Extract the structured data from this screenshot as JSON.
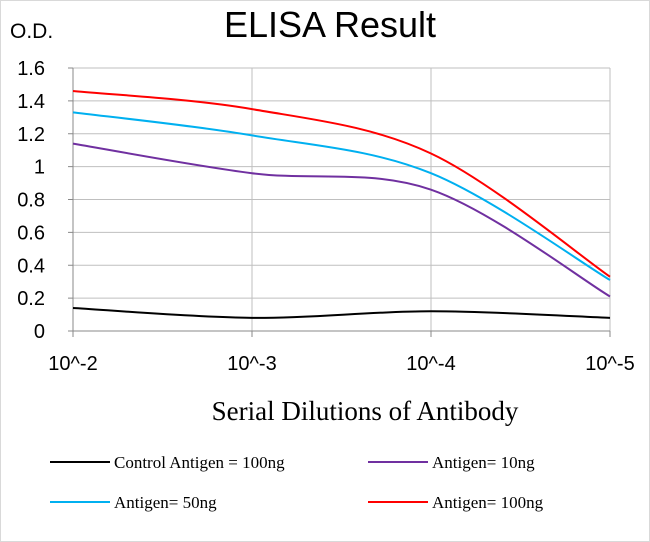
{
  "chart_data": {
    "type": "line",
    "title": "ELISA Result",
    "ylabel": "O.D.",
    "xlabel": "Serial Dilutions of Antibody",
    "categories": [
      "10^-2",
      "10^-3",
      "10^-4",
      "10^-5"
    ],
    "y_ticks": [
      "0",
      "0.2",
      "0.4",
      "0.6",
      "0.8",
      "1",
      "1.2",
      "1.4",
      "1.6"
    ],
    "ylim": [
      0,
      1.6
    ],
    "grid": true,
    "legend_position": "bottom",
    "series": [
      {
        "name": "Control Antigen = 100ng",
        "color": "#000000",
        "values": [
          0.14,
          0.08,
          0.12,
          0.08
        ]
      },
      {
        "name": "Antigen= 10ng",
        "color": "#7030a0",
        "values": [
          1.14,
          0.96,
          0.86,
          0.21
        ]
      },
      {
        "name": "Antigen= 50ng",
        "color": "#00b0f0",
        "values": [
          1.33,
          1.19,
          0.96,
          0.31
        ]
      },
      {
        "name": "Antigen= 100ng",
        "color": "#ff0000",
        "values": [
          1.46,
          1.35,
          1.08,
          0.33
        ]
      }
    ]
  }
}
